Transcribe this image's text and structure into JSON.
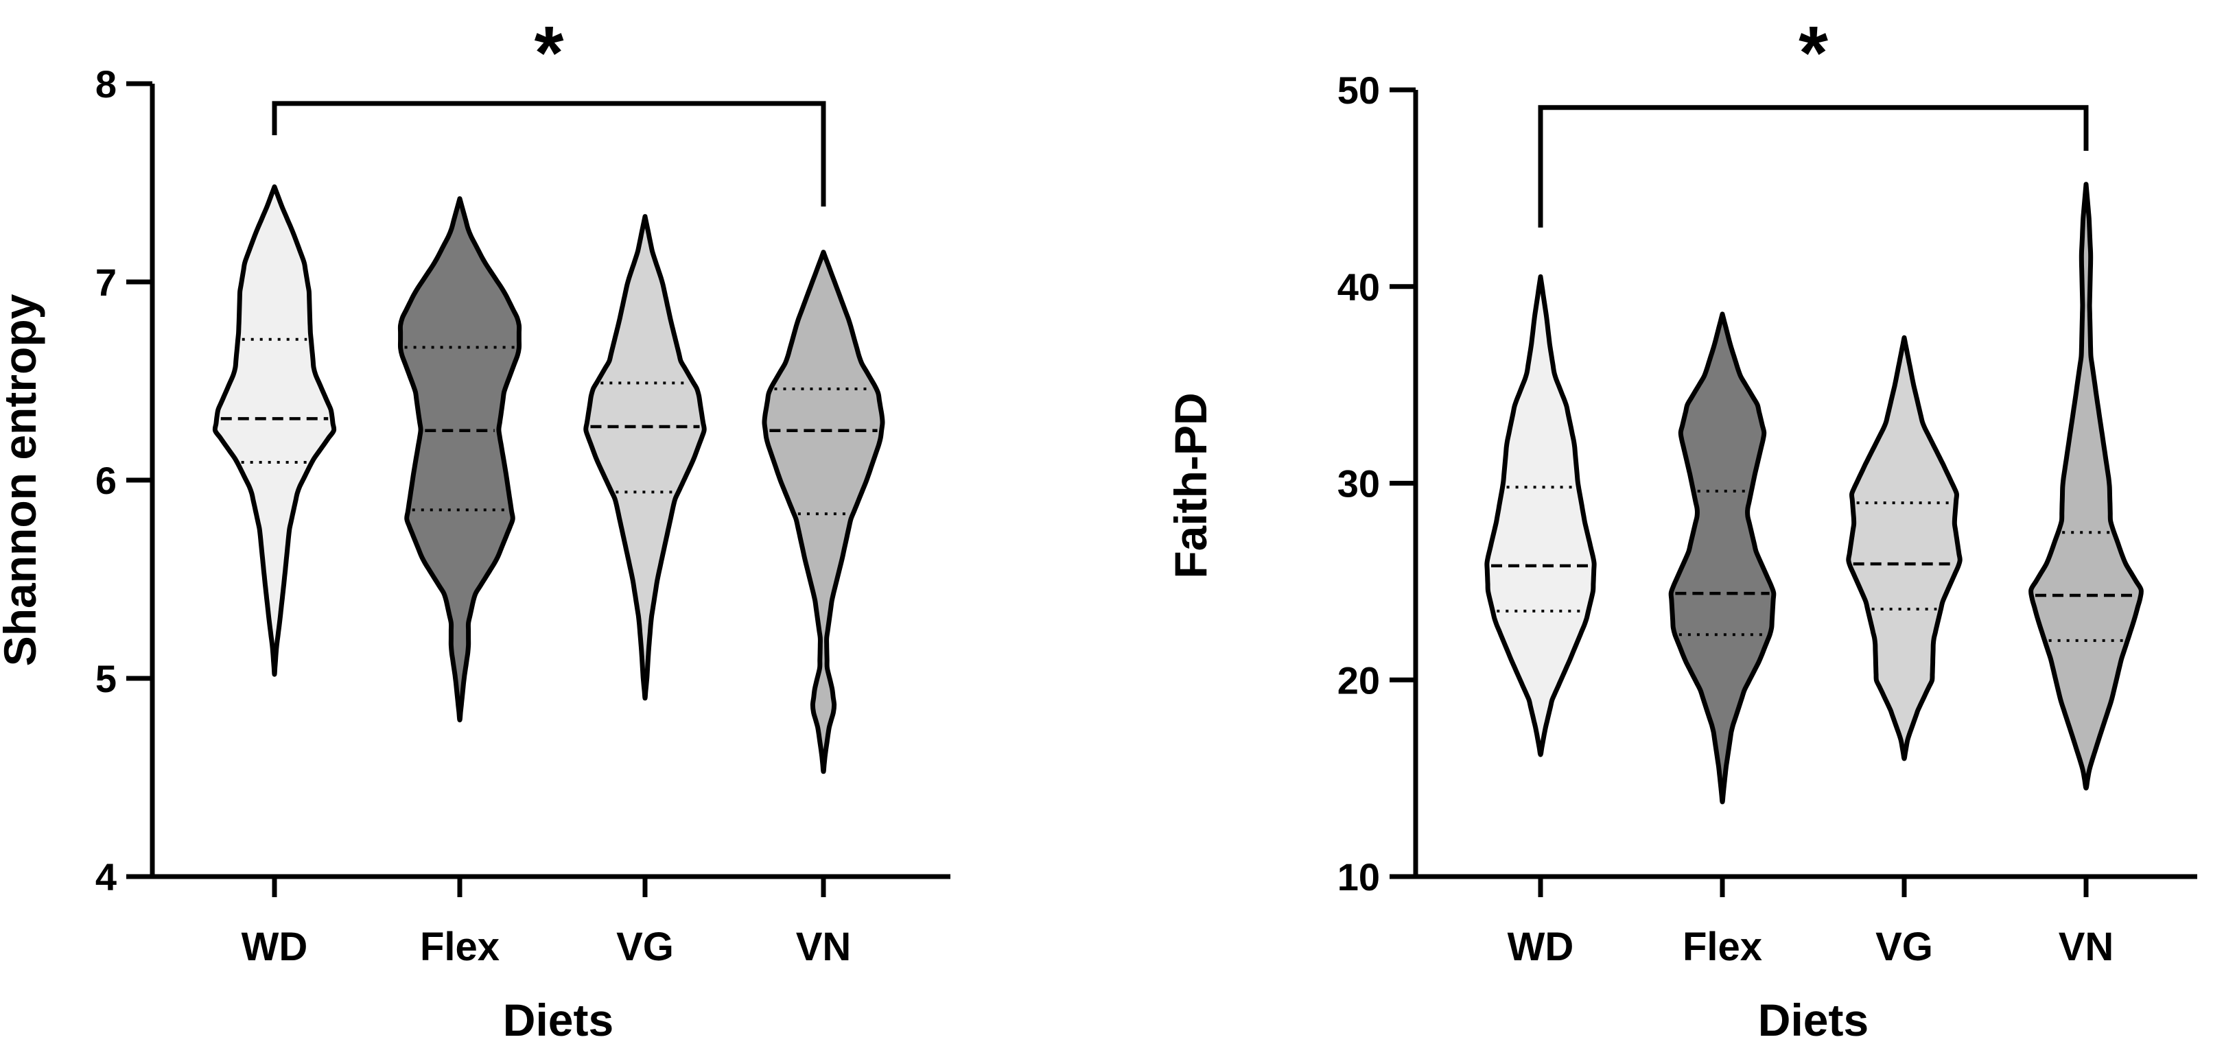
{
  "chart_data": [
    {
      "type": "violin",
      "panel": "left",
      "xlabel": "Diets",
      "ylabel": "Shannon entropy",
      "ylim": [
        4,
        8
      ],
      "yticks": [
        "4",
        "5",
        "6",
        "7",
        "8"
      ],
      "categories": [
        "WD",
        "Flex",
        "VG",
        "VN"
      ],
      "colors": [
        "#f0f0f0",
        "#7a7a7a",
        "#d4d4d4",
        "#b8b8b8"
      ],
      "significance": {
        "from": "WD",
        "to": "VN",
        "label": "*",
        "y": 7.9,
        "left_drop_to": 7.74,
        "right_drop_to": 7.38
      },
      "violins": [
        {
          "name": "WD",
          "min": 5.02,
          "max": 7.48,
          "q1": 6.09,
          "median": 6.31,
          "q3": 6.71,
          "profile": [
            [
              5.02,
              0.0
            ],
            [
              5.15,
              0.03
            ],
            [
              5.3,
              0.09
            ],
            [
              5.5,
              0.16
            ],
            [
              5.75,
              0.24
            ],
            [
              5.95,
              0.38
            ],
            [
              6.1,
              0.62
            ],
            [
              6.25,
              0.96
            ],
            [
              6.35,
              0.92
            ],
            [
              6.55,
              0.64
            ],
            [
              6.75,
              0.58
            ],
            [
              6.95,
              0.56
            ],
            [
              7.1,
              0.48
            ],
            [
              7.25,
              0.3
            ],
            [
              7.38,
              0.12
            ],
            [
              7.48,
              0.0
            ]
          ]
        },
        {
          "name": "Flex",
          "min": 4.79,
          "max": 7.42,
          "q1": 5.85,
          "median": 6.25,
          "q3": 6.67,
          "profile": [
            [
              4.79,
              0.0
            ],
            [
              4.88,
              0.03
            ],
            [
              5.0,
              0.07
            ],
            [
              5.15,
              0.14
            ],
            [
              5.28,
              0.14
            ],
            [
              5.42,
              0.24
            ],
            [
              5.6,
              0.6
            ],
            [
              5.8,
              0.86
            ],
            [
              6.05,
              0.74
            ],
            [
              6.25,
              0.63
            ],
            [
              6.45,
              0.72
            ],
            [
              6.65,
              0.96
            ],
            [
              6.8,
              0.96
            ],
            [
              6.95,
              0.72
            ],
            [
              7.1,
              0.4
            ],
            [
              7.25,
              0.15
            ],
            [
              7.42,
              0.0
            ]
          ]
        },
        {
          "name": "VG",
          "min": 4.9,
          "max": 7.33,
          "q1": 5.94,
          "median": 6.27,
          "q3": 6.49,
          "profile": [
            [
              4.9,
              0.0
            ],
            [
              5.0,
              0.03
            ],
            [
              5.15,
              0.06
            ],
            [
              5.3,
              0.1
            ],
            [
              5.5,
              0.2
            ],
            [
              5.7,
              0.34
            ],
            [
              5.9,
              0.48
            ],
            [
              6.1,
              0.78
            ],
            [
              6.25,
              0.96
            ],
            [
              6.45,
              0.86
            ],
            [
              6.6,
              0.58
            ],
            [
              6.8,
              0.42
            ],
            [
              7.0,
              0.28
            ],
            [
              7.15,
              0.12
            ],
            [
              7.33,
              0.0
            ]
          ]
        },
        {
          "name": "VN",
          "min": 4.53,
          "max": 7.15,
          "q1": 5.83,
          "median": 6.25,
          "q3": 6.46,
          "profile": [
            [
              4.53,
              0.0
            ],
            [
              4.62,
              0.03
            ],
            [
              4.75,
              0.09
            ],
            [
              4.85,
              0.18
            ],
            [
              4.95,
              0.14
            ],
            [
              5.05,
              0.06
            ],
            [
              5.2,
              0.05
            ],
            [
              5.4,
              0.14
            ],
            [
              5.6,
              0.3
            ],
            [
              5.8,
              0.44
            ],
            [
              6.0,
              0.7
            ],
            [
              6.2,
              0.92
            ],
            [
              6.3,
              0.96
            ],
            [
              6.45,
              0.88
            ],
            [
              6.6,
              0.6
            ],
            [
              6.8,
              0.42
            ],
            [
              6.95,
              0.24
            ],
            [
              7.15,
              0.0
            ]
          ]
        }
      ]
    },
    {
      "type": "violin",
      "panel": "right",
      "xlabel": "Diets",
      "ylabel": "Faith-PD",
      "ylim": [
        10,
        50
      ],
      "yticks": [
        "10",
        "20",
        "30",
        "40",
        "50"
      ],
      "categories": [
        "WD",
        "Flex",
        "VG",
        "VN"
      ],
      "colors": [
        "#f0f0f0",
        "#7a7a7a",
        "#d4d4d4",
        "#b8b8b8"
      ],
      "significance": {
        "from": "WD",
        "to": "VN",
        "label": "*",
        "y": 49.1,
        "left_drop_to": 43.0,
        "right_drop_to": 46.9
      },
      "violins": [
        {
          "name": "WD",
          "min": 16.2,
          "max": 40.5,
          "q1": 23.5,
          "median": 25.8,
          "q3": 29.8,
          "profile": [
            [
              16.2,
              0.0
            ],
            [
              17.5,
              0.08
            ],
            [
              19.0,
              0.2
            ],
            [
              21.0,
              0.5
            ],
            [
              23.0,
              0.78
            ],
            [
              24.5,
              0.9
            ],
            [
              26.0,
              0.92
            ],
            [
              28.0,
              0.76
            ],
            [
              30.0,
              0.64
            ],
            [
              32.0,
              0.58
            ],
            [
              34.0,
              0.44
            ],
            [
              35.5,
              0.24
            ],
            [
              37.0,
              0.16
            ],
            [
              38.5,
              0.1
            ],
            [
              40.5,
              0.0
            ]
          ]
        },
        {
          "name": "Flex",
          "min": 13.8,
          "max": 38.6,
          "q1": 22.3,
          "median": 24.4,
          "q3": 29.6,
          "profile": [
            [
              13.8,
              0.0
            ],
            [
              15.5,
              0.06
            ],
            [
              17.5,
              0.16
            ],
            [
              19.5,
              0.38
            ],
            [
              21.0,
              0.64
            ],
            [
              22.5,
              0.84
            ],
            [
              24.5,
              0.88
            ],
            [
              26.5,
              0.58
            ],
            [
              28.5,
              0.42
            ],
            [
              30.5,
              0.56
            ],
            [
              32.5,
              0.72
            ],
            [
              34.0,
              0.6
            ],
            [
              35.5,
              0.3
            ],
            [
              37.0,
              0.14
            ],
            [
              38.6,
              0.0
            ]
          ]
        },
        {
          "name": "VG",
          "min": 16.0,
          "max": 37.4,
          "q1": 23.6,
          "median": 25.9,
          "q3": 29.0,
          "profile": [
            [
              16.0,
              0.0
            ],
            [
              17.0,
              0.06
            ],
            [
              18.5,
              0.24
            ],
            [
              20.0,
              0.48
            ],
            [
              22.0,
              0.5
            ],
            [
              24.0,
              0.66
            ],
            [
              26.0,
              0.96
            ],
            [
              28.0,
              0.86
            ],
            [
              29.5,
              0.9
            ],
            [
              31.0,
              0.66
            ],
            [
              33.0,
              0.32
            ],
            [
              35.0,
              0.16
            ],
            [
              37.4,
              0.0
            ]
          ]
        },
        {
          "name": "VN",
          "min": 14.5,
          "max": 45.2,
          "q1": 22.0,
          "median": 24.3,
          "q3": 27.5,
          "profile": [
            [
              14.5,
              0.0
            ],
            [
              15.5,
              0.06
            ],
            [
              17.0,
              0.22
            ],
            [
              19.0,
              0.44
            ],
            [
              21.0,
              0.6
            ],
            [
              23.0,
              0.82
            ],
            [
              24.5,
              0.96
            ],
            [
              26.0,
              0.66
            ],
            [
              28.0,
              0.42
            ],
            [
              30.0,
              0.4
            ],
            [
              32.0,
              0.3
            ],
            [
              34.0,
              0.2
            ],
            [
              36.5,
              0.08
            ],
            [
              39.0,
              0.06
            ],
            [
              41.5,
              0.08
            ],
            [
              43.5,
              0.05
            ],
            [
              45.2,
              0.0
            ]
          ]
        }
      ]
    }
  ]
}
